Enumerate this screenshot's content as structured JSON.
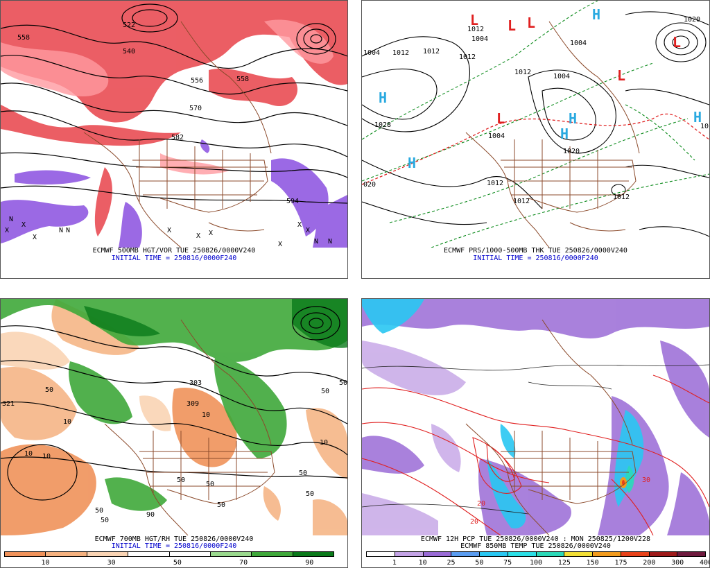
{
  "panels": {
    "p500": {
      "caption": "ECMWF 500MB HGT/VOR TUE 250826/0000V240",
      "initial": "INITIAL TIME = 250816/0000F240",
      "contour_labels": [
        "558",
        "540",
        "522",
        "556",
        "570",
        "582",
        "558",
        "594"
      ],
      "symbols": [
        "N",
        "X",
        "X",
        "X",
        "N",
        "N",
        "X",
        "X",
        "X",
        "X",
        "X",
        "N",
        "N",
        "X"
      ]
    },
    "pthk": {
      "caption": "ECMWF PRS/1000-500MB THK TUE 250826/0000V240",
      "initial": "INITIAL TIME = 250816/0000F240",
      "contour_labels": [
        "1004",
        "1012",
        "1012",
        "1004",
        "1012",
        "1004",
        "1028",
        "1012",
        "1012",
        "1004",
        "1020",
        "1020",
        "1012",
        "1004",
        "1012",
        "10",
        "020",
        "1012"
      ],
      "highs": [
        "H",
        "H",
        "H",
        "H",
        "H",
        "H"
      ],
      "lows": [
        "L",
        "L",
        "L",
        "L",
        "L",
        "L"
      ]
    },
    "p700": {
      "caption": "ECMWF 700MB HGT/RH TUE 250826/0000V240",
      "initial": "INITIAL TIME = 250816/0000F240",
      "contour_labels": [
        "50",
        "10",
        "321",
        "10",
        "309",
        "303",
        "10",
        "50",
        "50",
        "50",
        "50",
        "50",
        "50",
        "90",
        "50",
        "50",
        "50",
        "10",
        "10"
      ],
      "colorbar": {
        "colors": [
          "#f0925a",
          "#f5b17f",
          "#fad4b4",
          "#ffffff",
          "#ffffff",
          "#9ad98d",
          "#3fa83a",
          "#0a7a1a"
        ],
        "ticks": [
          "10",
          "30",
          "50",
          "70",
          "90"
        ]
      }
    },
    "p850": {
      "caption1": "ECMWF 12H PCP TUE 250826/0000V240 : MON 250825/1200V228",
      "caption2": "ECMWF 850MB TEMP TUE 250826/0000V240",
      "contour_labels": [
        "20",
        "20",
        "30"
      ],
      "colorbar": {
        "colors": [
          "#ffffff",
          "#c4a3e6",
          "#9a6bd6",
          "#5a9cf0",
          "#29c7f2",
          "#2bdfe6",
          "#2bd9b8",
          "#f2df35",
          "#f29b1d",
          "#e8421a",
          "#9e1a1a",
          "#6e1a3e"
        ],
        "ticks": [
          "1",
          "10",
          "25",
          "50",
          "75",
          "100",
          "125",
          "150",
          "175",
          "200",
          "300",
          "400"
        ]
      }
    }
  }
}
